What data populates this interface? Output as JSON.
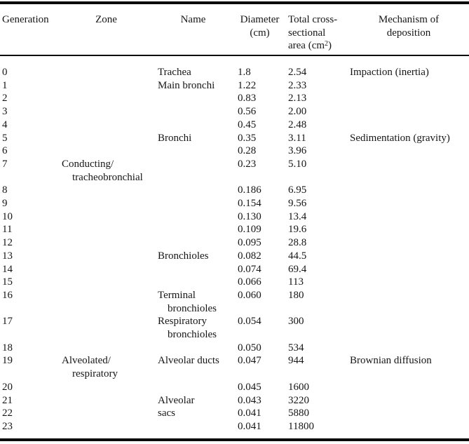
{
  "header": {
    "generation": "Generation",
    "zone": "Zone",
    "name": "Name",
    "diameter": [
      "Diameter",
      "(cm)"
    ],
    "area": [
      "Total cross-",
      "sectional"
    ],
    "area_line3": {
      "prefix": "area (cm",
      "sup": "2",
      "suffix": ")"
    },
    "mechanism": [
      "Mechanism of",
      "deposition"
    ]
  },
  "rows": [
    {
      "gen": "0",
      "name1": "Trachea",
      "dia": "1.8",
      "area": "2.54",
      "mech": "Impaction (inertia)"
    },
    {
      "gen": "1",
      "name1": "Main bronchi",
      "dia": "1.22",
      "area": "2.33"
    },
    {
      "gen": "2",
      "dia": "0.83",
      "area": "2.13"
    },
    {
      "gen": "3",
      "dia": "0.56",
      "area": "2.00"
    },
    {
      "gen": "4",
      "dia": "0.45",
      "area": "2.48"
    },
    {
      "gen": "5",
      "name1": "Bronchi",
      "dia": "0.35",
      "area": "3.11",
      "mech": "Sedimentation (gravity)"
    },
    {
      "gen": "6",
      "dia": "0.28",
      "area": "3.96"
    },
    {
      "gen": "7",
      "zone1": "Conducting/",
      "zone2": "tracheobronchial",
      "dia": "0.23",
      "area": "5.10"
    },
    {
      "gen": "8",
      "dia": "0.186",
      "area": "6.95"
    },
    {
      "gen": "9",
      "dia": "0.154",
      "area": "9.56"
    },
    {
      "gen": "10",
      "dia": "0.130",
      "area": "13.4"
    },
    {
      "gen": "11",
      "dia": "0.109",
      "area": "19.6"
    },
    {
      "gen": "12",
      "dia": "0.095",
      "area": "28.8"
    },
    {
      "gen": "13",
      "name1": "Bronchioles",
      "dia": "0.082",
      "area": "44.5"
    },
    {
      "gen": "14",
      "dia": "0.074",
      "area": "69.4"
    },
    {
      "gen": "15",
      "dia": "0.066",
      "area": "113"
    },
    {
      "gen": "16",
      "name1": "Terminal",
      "name2": "bronchioles",
      "dia": "0.060",
      "area": "180"
    },
    {
      "gen": "17",
      "name1": "Respiratory",
      "name2": "bronchioles",
      "dia": "0.054",
      "area": "300"
    },
    {
      "gen": "18",
      "dia": "0.050",
      "area": "534"
    },
    {
      "gen": "19",
      "zone1": "Alveolated/",
      "zone2": "respiratory",
      "name1": "Alveolar ducts",
      "dia": "0.047",
      "area": "944",
      "mech": "Brownian diffusion"
    },
    {
      "gen": "20",
      "dia": "0.045",
      "area": "1600"
    },
    {
      "gen": "21",
      "name1": "Alveolar",
      "dia": "0.043",
      "area": "3220"
    },
    {
      "gen": "22",
      "name1": "sacs",
      "dia": "0.041",
      "area": "5880"
    },
    {
      "gen": "23",
      "dia": "0.041",
      "area": "11800"
    }
  ]
}
